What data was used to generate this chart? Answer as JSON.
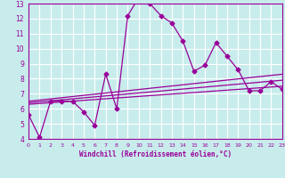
{
  "xlabel": "Windchill (Refroidissement éolien,°C)",
  "bg_color": "#c8ecec",
  "grid_color": "#ffffff",
  "line_color": "#990099",
  "xmin": 0,
  "xmax": 23,
  "ymin": 4,
  "ymax": 13,
  "x_ticks": [
    0,
    1,
    2,
    3,
    4,
    5,
    6,
    7,
    8,
    9,
    10,
    11,
    12,
    13,
    14,
    15,
    16,
    17,
    18,
    19,
    20,
    21,
    22,
    23
  ],
  "y_ticks": [
    4,
    5,
    6,
    7,
    8,
    9,
    10,
    11,
    12,
    13
  ],
  "main_line_x": [
    0,
    1,
    2,
    3,
    4,
    5,
    6,
    7,
    8,
    9,
    10,
    11,
    12,
    13,
    14,
    15,
    16,
    17,
    18,
    19,
    20,
    21,
    22,
    23
  ],
  "main_line_y": [
    5.6,
    4.1,
    6.5,
    6.5,
    6.5,
    5.8,
    4.9,
    8.3,
    6.0,
    12.2,
    13.4,
    13.0,
    12.2,
    11.7,
    10.5,
    8.5,
    8.9,
    10.4,
    9.5,
    8.6,
    7.2,
    7.2,
    7.8,
    7.3
  ],
  "trend1_x": [
    0,
    23
  ],
  "trend1_y": [
    6.3,
    7.5
  ],
  "trend2_x": [
    0,
    23
  ],
  "trend2_y": [
    6.4,
    7.9
  ],
  "trend3_x": [
    0,
    23
  ],
  "trend3_y": [
    6.5,
    8.3
  ]
}
